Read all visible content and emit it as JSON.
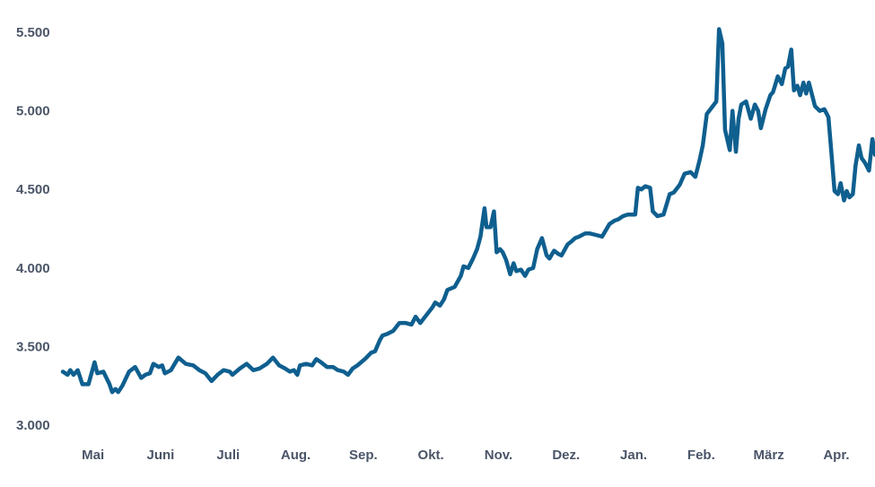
{
  "chart_data": {
    "type": "line",
    "title": "",
    "xlabel": "",
    "ylabel": "",
    "ylim": [
      3000,
      5500
    ],
    "grid": false,
    "legend": "none",
    "y_ticks": [
      {
        "value": 5500,
        "label": "5.500"
      },
      {
        "value": 5000,
        "label": "5.000"
      },
      {
        "value": 4500,
        "label": "4.500"
      },
      {
        "value": 4000,
        "label": "4.000"
      },
      {
        "value": 3500,
        "label": "3.500"
      },
      {
        "value": 3000,
        "label": "3.000"
      }
    ],
    "x_ticks": [
      {
        "value": 0.5,
        "label": "Mai"
      },
      {
        "value": 1.5,
        "label": "Juni"
      },
      {
        "value": 2.5,
        "label": "Juli"
      },
      {
        "value": 3.5,
        "label": "Aug."
      },
      {
        "value": 4.5,
        "label": "Sep."
      },
      {
        "value": 5.5,
        "label": "Okt."
      },
      {
        "value": 6.5,
        "label": "Nov."
      },
      {
        "value": 7.5,
        "label": "Dez."
      },
      {
        "value": 8.5,
        "label": "Jan."
      },
      {
        "value": 9.5,
        "label": "Feb."
      },
      {
        "value": 10.5,
        "label": "März"
      },
      {
        "value": 11.5,
        "label": "Apr."
      }
    ],
    "xlim": [
      0,
      12
    ],
    "line_color": "#0f5f8f",
    "series": [
      {
        "values": [
          [
            0.0,
            3340
          ],
          [
            0.07,
            3320
          ],
          [
            0.11,
            3350
          ],
          [
            0.16,
            3320
          ],
          [
            0.22,
            3350
          ],
          [
            0.29,
            3260
          ],
          [
            0.38,
            3260
          ],
          [
            0.47,
            3400
          ],
          [
            0.51,
            3330
          ],
          [
            0.6,
            3340
          ],
          [
            0.69,
            3260
          ],
          [
            0.73,
            3210
          ],
          [
            0.78,
            3230
          ],
          [
            0.82,
            3210
          ],
          [
            0.88,
            3250
          ],
          [
            0.98,
            3340
          ],
          [
            1.07,
            3370
          ],
          [
            1.16,
            3300
          ],
          [
            1.22,
            3320
          ],
          [
            1.29,
            3330
          ],
          [
            1.34,
            3390
          ],
          [
            1.42,
            3370
          ],
          [
            1.47,
            3380
          ],
          [
            1.51,
            3330
          ],
          [
            1.6,
            3350
          ],
          [
            1.71,
            3430
          ],
          [
            1.82,
            3390
          ],
          [
            1.93,
            3380
          ],
          [
            2.02,
            3350
          ],
          [
            2.11,
            3330
          ],
          [
            2.2,
            3280
          ],
          [
            2.29,
            3320
          ],
          [
            2.38,
            3350
          ],
          [
            2.47,
            3340
          ],
          [
            2.51,
            3320
          ],
          [
            2.62,
            3360
          ],
          [
            2.72,
            3390
          ],
          [
            2.82,
            3350
          ],
          [
            2.91,
            3360
          ],
          [
            3.02,
            3390
          ],
          [
            3.11,
            3430
          ],
          [
            3.2,
            3380
          ],
          [
            3.29,
            3360
          ],
          [
            3.36,
            3340
          ],
          [
            3.42,
            3350
          ],
          [
            3.47,
            3320
          ],
          [
            3.51,
            3380
          ],
          [
            3.6,
            3390
          ],
          [
            3.69,
            3380
          ],
          [
            3.75,
            3420
          ],
          [
            3.82,
            3400
          ],
          [
            3.91,
            3370
          ],
          [
            4.0,
            3370
          ],
          [
            4.07,
            3350
          ],
          [
            4.16,
            3340
          ],
          [
            4.22,
            3320
          ],
          [
            4.29,
            3360
          ],
          [
            4.36,
            3380
          ],
          [
            4.47,
            3420
          ],
          [
            4.56,
            3460
          ],
          [
            4.62,
            3470
          ],
          [
            4.69,
            3540
          ],
          [
            4.73,
            3570
          ],
          [
            4.8,
            3580
          ],
          [
            4.89,
            3600
          ],
          [
            4.98,
            3650
          ],
          [
            5.07,
            3650
          ],
          [
            5.16,
            3640
          ],
          [
            5.22,
            3690
          ],
          [
            5.29,
            3650
          ],
          [
            5.38,
            3700
          ],
          [
            5.47,
            3750
          ],
          [
            5.51,
            3780
          ],
          [
            5.58,
            3760
          ],
          [
            5.64,
            3800
          ],
          [
            5.69,
            3860
          ],
          [
            5.8,
            3880
          ],
          [
            5.89,
            3950
          ],
          [
            5.93,
            4010
          ],
          [
            6.0,
            4000
          ],
          [
            6.07,
            4060
          ],
          [
            6.13,
            4120
          ],
          [
            6.18,
            4200
          ],
          [
            6.24,
            4380
          ],
          [
            6.27,
            4260
          ],
          [
            6.33,
            4260
          ],
          [
            6.38,
            4360
          ],
          [
            6.42,
            4100
          ],
          [
            6.47,
            4120
          ],
          [
            6.51,
            4100
          ],
          [
            6.56,
            4050
          ],
          [
            6.62,
            3960
          ],
          [
            6.67,
            4030
          ],
          [
            6.71,
            3980
          ],
          [
            6.78,
            3990
          ],
          [
            6.84,
            3950
          ],
          [
            6.89,
            3990
          ],
          [
            6.96,
            4000
          ],
          [
            7.02,
            4120
          ],
          [
            7.09,
            4190
          ],
          [
            7.16,
            4080
          ],
          [
            7.2,
            4060
          ],
          [
            7.27,
            4110
          ],
          [
            7.33,
            4090
          ],
          [
            7.38,
            4080
          ],
          [
            7.47,
            4150
          ],
          [
            7.53,
            4170
          ],
          [
            7.58,
            4190
          ],
          [
            7.64,
            4200
          ],
          [
            7.73,
            4220
          ],
          [
            7.8,
            4220
          ],
          [
            7.89,
            4210
          ],
          [
            7.98,
            4200
          ],
          [
            8.09,
            4280
          ],
          [
            8.16,
            4300
          ],
          [
            8.22,
            4310
          ],
          [
            8.29,
            4330
          ],
          [
            8.36,
            4340
          ],
          [
            8.47,
            4340
          ],
          [
            8.51,
            4510
          ],
          [
            8.56,
            4500
          ],
          [
            8.62,
            4520
          ],
          [
            8.69,
            4510
          ],
          [
            8.73,
            4360
          ],
          [
            8.8,
            4330
          ],
          [
            8.89,
            4340
          ],
          [
            8.98,
            4470
          ],
          [
            9.04,
            4480
          ],
          [
            9.13,
            4530
          ],
          [
            9.2,
            4600
          ],
          [
            9.29,
            4610
          ],
          [
            9.36,
            4580
          ],
          [
            9.42,
            4680
          ],
          [
            9.47,
            4780
          ],
          [
            9.53,
            4980
          ],
          [
            9.6,
            5020
          ],
          [
            9.67,
            5060
          ],
          [
            9.71,
            5520
          ],
          [
            9.76,
            5430
          ],
          [
            9.8,
            4880
          ],
          [
            9.87,
            4750
          ],
          [
            9.91,
            5000
          ],
          [
            9.96,
            4740
          ],
          [
            10.0,
            4950
          ],
          [
            10.04,
            5040
          ],
          [
            10.11,
            5060
          ],
          [
            10.18,
            4950
          ],
          [
            10.24,
            5040
          ],
          [
            10.29,
            5000
          ],
          [
            10.33,
            4890
          ],
          [
            10.4,
            5010
          ],
          [
            10.47,
            5100
          ],
          [
            10.51,
            5120
          ],
          [
            10.58,
            5220
          ],
          [
            10.64,
            5170
          ],
          [
            10.69,
            5270
          ],
          [
            10.73,
            5280
          ],
          [
            10.78,
            5390
          ],
          [
            10.82,
            5130
          ],
          [
            10.87,
            5160
          ],
          [
            10.91,
            5100
          ],
          [
            10.96,
            5180
          ],
          [
            11.0,
            5110
          ],
          [
            11.04,
            5180
          ],
          [
            11.13,
            5030
          ],
          [
            11.2,
            5000
          ],
          [
            11.27,
            5010
          ],
          [
            11.33,
            4960
          ],
          [
            11.38,
            4700
          ],
          [
            11.42,
            4490
          ],
          [
            11.47,
            4470
          ],
          [
            11.51,
            4540
          ],
          [
            11.56,
            4430
          ],
          [
            11.6,
            4490
          ],
          [
            11.64,
            4450
          ],
          [
            11.69,
            4470
          ],
          [
            11.73,
            4650
          ],
          [
            11.78,
            4780
          ],
          [
            11.82,
            4700
          ],
          [
            11.87,
            4670
          ],
          [
            11.93,
            4620
          ],
          [
            11.98,
            4820
          ],
          [
            12.02,
            4720
          ],
          [
            12.07,
            4780
          ],
          [
            12.11,
            4680
          ],
          [
            12.16,
            4850
          ],
          [
            12.22,
            4820
          ],
          [
            12.27,
            4760
          ],
          [
            12.31,
            4800
          ],
          [
            12.36,
            4770
          ]
        ]
      }
    ]
  }
}
